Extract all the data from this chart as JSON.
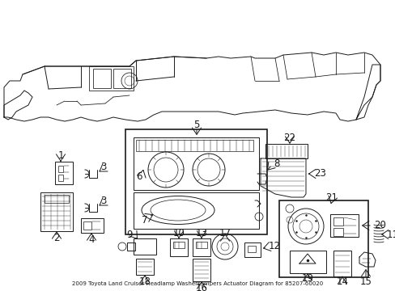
{
  "title": "2009 Toyota Land Cruiser Headlamp Washers/Wipers Actuator Diagram for 85207-60020",
  "bg_color": "#ffffff",
  "lc": "#1a1a1a",
  "fig_width": 4.89,
  "fig_height": 3.6,
  "dpi": 100,
  "label_fontsize": 8.5,
  "small_fontsize": 6.5
}
